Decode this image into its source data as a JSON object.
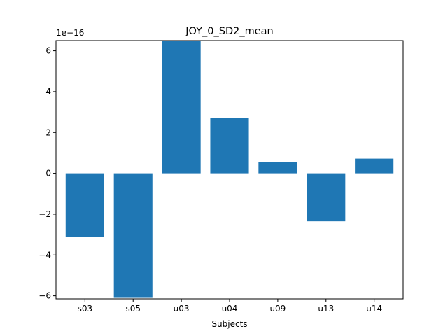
{
  "chart_data": {
    "type": "bar",
    "title": "JOY_0_SD2_mean",
    "xlabel": "Subjects",
    "ylabel": "",
    "offset_text": "1e−16",
    "categories": [
      "s03",
      "s05",
      "u03",
      "u04",
      "u09",
      "u13",
      "u14"
    ],
    "values": [
      -3.1,
      -6.1,
      6.5,
      2.7,
      0.55,
      -2.35,
      0.72
    ],
    "value_scale": 1e-16,
    "ylim": [
      -6.15,
      6.5
    ],
    "yticks": [
      -6,
      -4,
      -2,
      0,
      2,
      4,
      6
    ],
    "ytick_labels": [
      "−6",
      "−4",
      "−2",
      "0",
      "2",
      "4",
      "6"
    ],
    "grid": false,
    "bar_color": "#1f77b4"
  }
}
